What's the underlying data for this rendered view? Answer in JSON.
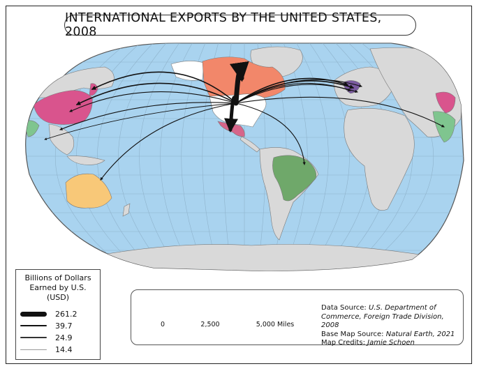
{
  "title": "INTERNATIONAL EXPORTS BY THE UNITED STATES, 2008",
  "legend": {
    "title_lines": [
      "Billions of Dollars",
      "Earned by U.S.",
      "(USD)"
    ],
    "items": [
      {
        "label": "261.2",
        "value": 261.2
      },
      {
        "label": "39.7",
        "value": 39.7
      },
      {
        "label": "24.9",
        "value": 24.9
      },
      {
        "label": "14.4",
        "value": 14.4
      }
    ]
  },
  "scale_bar": {
    "labels": [
      "0",
      "2,500",
      "5,000 Miles"
    ]
  },
  "credits": {
    "data_source_label": "Data Source:",
    "data_source_line1": "U.S. Department of",
    "data_source_line2": "Commerce, Foreign Trade Division, 2008",
    "basemap_label": "Base Map Source:",
    "basemap_value": "Natural Earth, 2021",
    "credits_label": "Map Credits:",
    "credits_value": "Jamie Schoen"
  },
  "colors": {
    "ocean": "#a9d3ef",
    "land": "#d9d9d9",
    "usa": "#ffffff",
    "canada": "#f2876a",
    "mexico": "#d6658a",
    "china": "#d9548d",
    "japan": "#d9548d",
    "brazil": "#6fa86a",
    "australia": "#f8c878",
    "uk_de_nl": "#7a5aa0",
    "india": "#7fc58f",
    "flow": "#111111"
  }
}
